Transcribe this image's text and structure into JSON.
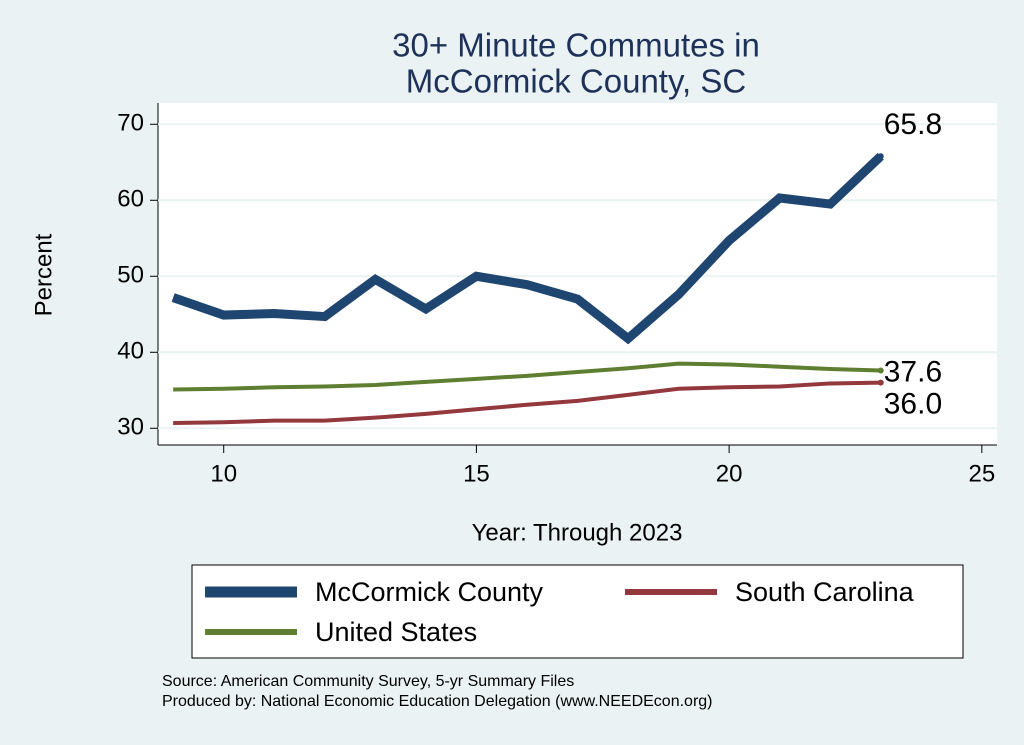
{
  "chart_data": {
    "type": "line",
    "title": [
      "30+ Minute Commutes in",
      "McCormick County, SC"
    ],
    "x_label": "Year: Through 2023",
    "y_label": "Percent",
    "x": [
      9,
      10,
      11,
      12,
      13,
      14,
      15,
      16,
      17,
      18,
      19,
      20,
      21,
      22,
      23
    ],
    "series": [
      {
        "name": "McCormick County",
        "color": "#1f4670",
        "values": [
          47.2,
          44.9,
          45.1,
          44.7,
          49.6,
          45.7,
          50.0,
          48.9,
          47.0,
          41.8,
          47.6,
          54.7,
          60.3,
          59.5,
          65.8
        ],
        "value_labels": [
          null,
          null,
          null,
          null,
          null,
          null,
          null,
          null,
          null,
          null,
          null,
          null,
          null,
          null,
          "65.8"
        ]
      },
      {
        "name": "South Carolina",
        "color": "#93383d",
        "values": [
          30.7,
          30.8,
          31.0,
          31.0,
          31.4,
          31.9,
          32.5,
          33.1,
          33.6,
          34.4,
          35.2,
          35.4,
          35.5,
          35.9,
          36.0
        ],
        "value_labels": [
          null,
          null,
          null,
          null,
          null,
          null,
          null,
          null,
          null,
          null,
          null,
          null,
          null,
          null,
          "36.0"
        ]
      },
      {
        "name": "United States",
        "color": "#5e7f32",
        "values": [
          35.1,
          35.2,
          35.4,
          35.5,
          35.7,
          36.1,
          36.5,
          36.9,
          37.4,
          37.9,
          38.5,
          38.4,
          38.1,
          37.8,
          37.6
        ],
        "value_labels": [
          null,
          null,
          null,
          null,
          null,
          null,
          null,
          null,
          null,
          null,
          null,
          null,
          null,
          null,
          "37.6"
        ]
      }
    ],
    "xlim": [
      8.7,
      25.3
    ],
    "xticks": [
      10,
      15,
      20,
      25
    ],
    "ylim": [
      27.8,
      72.8
    ],
    "yticks": [
      30,
      40,
      50,
      60,
      70
    ],
    "grid": true,
    "notes": [
      "Source: American Community Survey, 5-yr Summary Files",
      "Produced by: National Economic Education Delegation (www.NEEDEcon.org)"
    ]
  }
}
